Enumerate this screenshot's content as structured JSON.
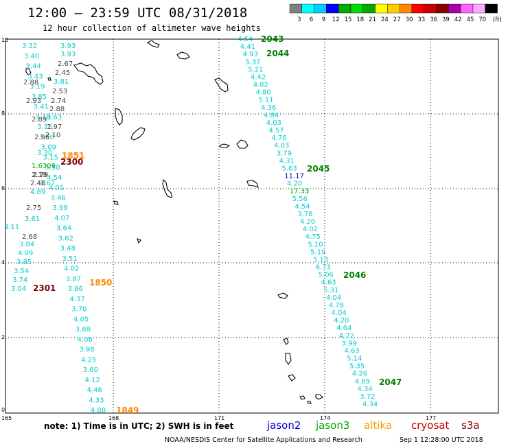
{
  "title": "12:00 – 23:59 UTC 08/31/2018",
  "subtitle": "12 hour collection of altimeter wave heights",
  "colorbar": {
    "labels": [
      "3",
      "6",
      "9",
      "12",
      "15",
      "18",
      "21",
      "24",
      "27",
      "30",
      "33",
      "36",
      "39",
      "42",
      "45",
      "70"
    ],
    "unit": "(ft)",
    "colors": [
      "#808080",
      "#00ffff",
      "#00ccff",
      "#0000ff",
      "#00aa00",
      "#00dd00",
      "#00aa00",
      "#ffff00",
      "#ffcc00",
      "#ff8800",
      "#ff0000",
      "#cc0000",
      "#880000",
      "#aa00aa",
      "#ff66ff",
      "#ffaaff",
      "#000000"
    ]
  },
  "axes": {
    "x_ticks": [
      "165",
      "168",
      "171",
      "174",
      "177"
    ],
    "y_ticks": [
      "0",
      "2",
      "4",
      "6",
      "8",
      "10"
    ]
  },
  "pass_times": [
    {
      "text": "2043",
      "color": "#008000"
    },
    {
      "text": "2044",
      "color": "#008000"
    },
    {
      "text": "2045",
      "color": "#008000"
    },
    {
      "text": "2046",
      "color": "#008000"
    },
    {
      "text": "2047",
      "color": "#008000"
    },
    {
      "text": "1851",
      "color": "#ff8800"
    },
    {
      "text": "2300",
      "color": "#800000"
    },
    {
      "text": "1850",
      "color": "#ff8800"
    },
    {
      "text": "2301",
      "color": "#800000"
    },
    {
      "text": "1849",
      "color": "#ff8800"
    }
  ],
  "track_east": {
    "color": "#00cccc",
    "values": [
      "4.54",
      "4.41",
      "4.93",
      "5.37",
      "5.21",
      "4.42",
      "4.82",
      "4.80",
      "5.11",
      "4.36",
      "4.84",
      "4.03",
      "4.57",
      "4.76",
      "4.03",
      "3.79",
      "4.31",
      "5.63",
      "11.17",
      "4.20",
      "17.33",
      "5.56",
      "4.54",
      "3.78",
      "4.20",
      "4.02",
      "4.75",
      "5.10",
      "5.19",
      "5.13",
      "6.73",
      "5.06",
      "4.63",
      "5.31",
      "4.04",
      "4.78",
      "4.04",
      "4.20",
      "4.64",
      "4.22",
      "3.99",
      "4.63",
      "5.14",
      "5.35",
      "4.26",
      "4.89",
      "4.34",
      "3.72",
      "4.34"
    ]
  },
  "track_west_cyan": {
    "color": "#00cccc",
    "values": [
      "3.32",
      "3.40",
      "3.44",
      "3.43",
      "3.19",
      "3.85",
      "3.41",
      "3.18",
      "3.15",
      "3.30",
      "3.09",
      "3.15",
      "3.58",
      "4.54",
      "4.01",
      "3.46",
      "3.99",
      "4.07",
      "3.64",
      "3.62",
      "3.48",
      "3.51",
      "4.02",
      "3.87",
      "3.86",
      "4.37",
      "3.70",
      "4.05",
      "3.88",
      "4.06",
      "3.98",
      "4.25",
      "3.60",
      "4.12",
      "4.48",
      "4.33",
      "4.08"
    ]
  },
  "track_west_cyan2": {
    "color": "#00cccc",
    "values": [
      "3.93",
      "3.93",
      "3.81",
      "3.63",
      "3.67",
      "4.11",
      "3.84",
      "4.09",
      "3.85",
      "3.54",
      "3.74",
      "3.04",
      "3.61"
    ]
  },
  "track_west_gray": {
    "color": "#444444",
    "values": [
      "2.67",
      "2.45",
      "2.88",
      "2.53",
      "2.93",
      "2.74",
      "2.88",
      "2.89",
      "1.97",
      "2.10",
      "2.96",
      "2.79",
      "2.48",
      "2.75",
      "2.68"
    ]
  },
  "overlap_labels": {
    "a": "1.6309",
    "b": "2.19",
    "c": "4.89",
    "d": "3.30"
  },
  "legend": {
    "note": "note:  1) Time is in UTC;  2) SWH is in feet",
    "items": [
      {
        "text": "jason2",
        "color": "#0000cc"
      },
      {
        "text": "jason3",
        "color": "#00aa00"
      },
      {
        "text": "altika",
        "color": "#ff9900"
      },
      {
        "text": "cryosat",
        "color": "#cc0000"
      },
      {
        "text": "s3a",
        "color": "#880000"
      }
    ]
  },
  "footer": {
    "left": "NOAA/NESDIS Center for Satellite Applications and Research",
    "right": "Sep  1 12:28:00 UTC 2018"
  }
}
